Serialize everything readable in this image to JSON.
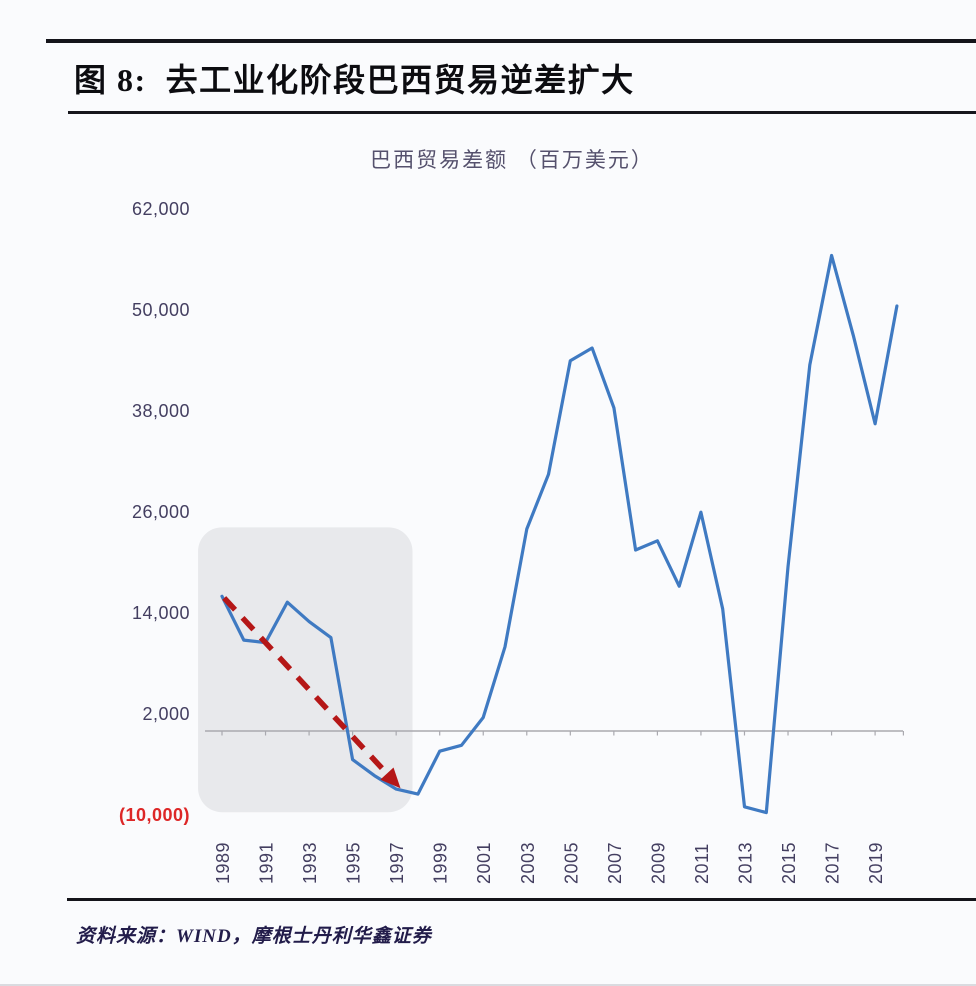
{
  "header": {
    "title": "图 8:  去工业化阶段巴西贸易逆差扩大"
  },
  "chart": {
    "title": "巴西贸易差额 （百万美元）",
    "y_axis": {
      "ticks": [
        {
          "label": "62,000",
          "value": 62000
        },
        {
          "label": "50,000",
          "value": 50000
        },
        {
          "label": "38,000",
          "value": 38000
        },
        {
          "label": "26,000",
          "value": 26000
        },
        {
          "label": "14,000",
          "value": 14000
        },
        {
          "label": "2,000",
          "value": 2000
        },
        {
          "label": "(10,000)",
          "value": -10000
        }
      ]
    },
    "x_axis": {
      "years": [
        1989,
        1991,
        1993,
        1995,
        1997,
        1999,
        2001,
        2003,
        2005,
        2007,
        2009,
        2011,
        2013,
        2015,
        2017,
        2019
      ]
    },
    "colors": {
      "line": "#3f7ac2",
      "arrow": "#b51717",
      "label": "#433e60",
      "negative_label": "#dd2727",
      "axis": "#a9a9af",
      "highlight": "#e8e9ec",
      "title_text": "#55516d"
    }
  },
  "chart_data": {
    "type": "line",
    "title": "巴西贸易差额 （百万美元）",
    "ylabel": "百万美元",
    "x": [
      1989,
      1990,
      1991,
      1992,
      1993,
      1994,
      1995,
      1996,
      1997,
      1998,
      1999,
      2000,
      2001,
      2002,
      2003,
      2004,
      2005,
      2006,
      2007,
      2008,
      2009,
      2010,
      2011,
      2012,
      2013,
      2014,
      2015,
      2016,
      2017,
      2018,
      2019,
      2020
    ],
    "values": [
      16000,
      10800,
      10500,
      15300,
      13000,
      11100,
      -3400,
      -5300,
      -6900,
      -7500,
      -2400,
      -1700,
      1600,
      10000,
      24000,
      30500,
      44000,
      45500,
      38400,
      21500,
      22600,
      17200,
      26000,
      14500,
      -9000,
      -9700,
      19500,
      43500,
      56500,
      47000,
      36500,
      50500
    ],
    "ylim": [
      -10000,
      62000
    ],
    "y_tick_interval": 12000,
    "grid": false,
    "legend": false,
    "annotations": {
      "highlight_region": {
        "year_start": 1987.9,
        "year_end": 1997.75,
        "value_top": 24200,
        "value_bottom": -9650
      },
      "trend_arrow": {
        "from_year": 1989.1,
        "from_value": 15800,
        "to_year": 1997.2,
        "to_value": -6800
      }
    }
  },
  "footer": {
    "source": "资料来源：WIND，摩根士丹利华鑫证券"
  }
}
